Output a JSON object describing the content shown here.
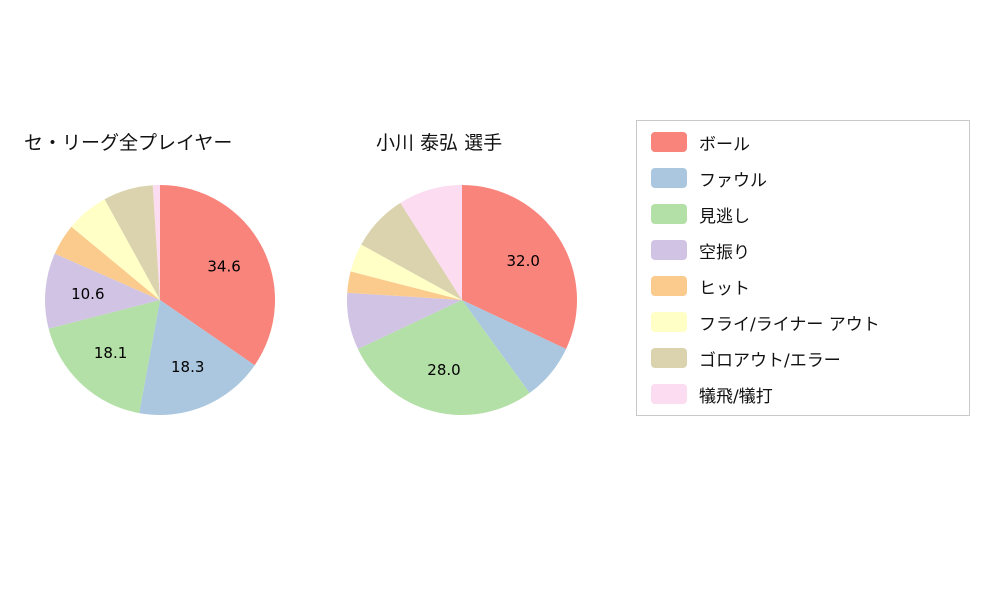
{
  "chart_data": {
    "type": "pie",
    "legend_position": "right",
    "categories": [
      "ボール",
      "ファウル",
      "見逃し",
      "空振り",
      "ヒット",
      "フライ/ライナー アウト",
      "ゴロアウト/エラー",
      "犠飛/犠打"
    ],
    "colors": [
      "#f8847c",
      "#aac7df",
      "#b3e0a6",
      "#d0c3e3",
      "#fbcb8e",
      "#ffffc6",
      "#dbd3ae",
      "#fcdcf0"
    ],
    "charts": [
      {
        "title": "セ・リーグ全プレイヤー",
        "values": [
          34.6,
          18.3,
          18.1,
          10.6,
          4.4,
          6.0,
          7.0,
          1.0
        ],
        "slice_labels": [
          "34.6",
          "18.3",
          "18.1",
          "10.6",
          "",
          "",
          "",
          ""
        ]
      },
      {
        "title": "小川 泰弘  選手",
        "values": [
          32.0,
          8.0,
          28.0,
          8.0,
          3.0,
          4.0,
          8.0,
          9.0
        ],
        "slice_labels": [
          "32.0",
          "",
          "28.0",
          "",
          "",
          "",
          "",
          ""
        ]
      }
    ]
  }
}
